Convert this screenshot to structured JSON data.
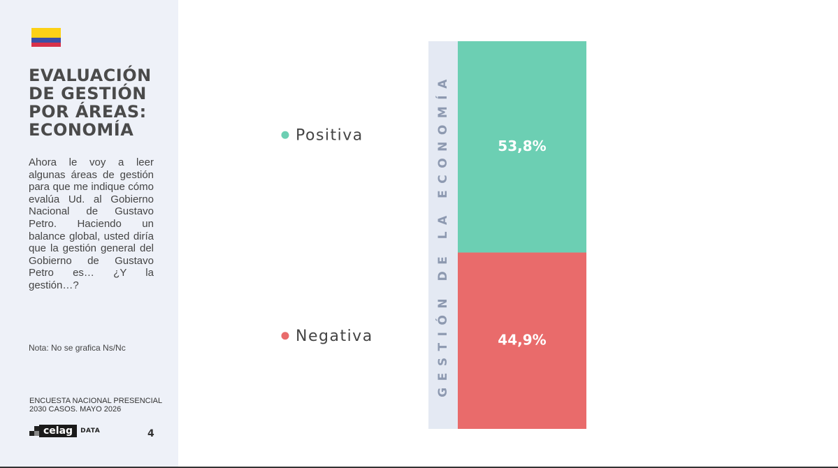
{
  "header": {
    "title": "EVALUACIÓN DE GESTIÓN POR ÁREAS: ECONOMÍA",
    "description": "Ahora le voy a leer algunas áreas de gestión para que me indique cómo evalúa Ud. al Gobierno Nacional de Gustavo Petro. Haciendo un balance global, usted diría que la gestión general del Gobierno de Gustavo Petro es… ¿Y la gestión…?",
    "note": "Nota: No se grafica Ns/Nc"
  },
  "footer": {
    "survey": "ENCUESTA NACIONAL PRESENCIAL",
    "sample": "2030 CASOS. MAYO 2026",
    "logo": "celag",
    "logo_suffix": "DATA",
    "page": "4"
  },
  "chart_data": {
    "type": "stacked_bar",
    "categories": [
      "GESTIÓN DE LA ECONOMÍA"
    ],
    "series": [
      {
        "name": "Positiva",
        "color": "#6ccfb3",
        "values": [
          53.8
        ],
        "value_labels": [
          "53,8%"
        ]
      },
      {
        "name": "Negativa",
        "color": "#e96b6b",
        "values": [
          44.9
        ],
        "value_labels": [
          "44,9%"
        ]
      }
    ]
  }
}
